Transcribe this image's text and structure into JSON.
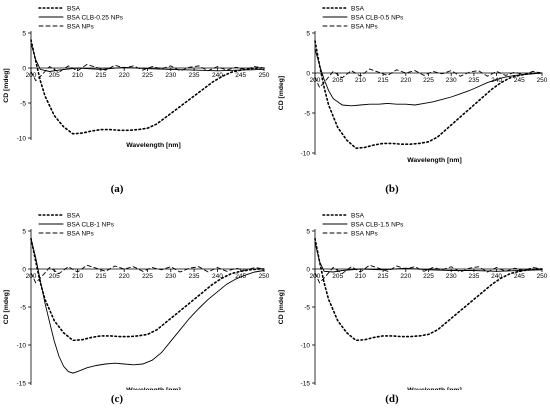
{
  "chart_data": [
    {
      "type": "line",
      "panel": "(a)",
      "xlabel": "Wavelength [nm]",
      "ylabel": "CD [mdeg]",
      "xlim": [
        200,
        250
      ],
      "ylim": [
        -10,
        5
      ],
      "xticks": [
        200,
        205,
        210,
        215,
        220,
        225,
        230,
        235,
        240,
        245,
        250
      ],
      "yticks": [
        5,
        0,
        -5,
        -10
      ],
      "legend_position": "top-left",
      "series": [
        {
          "name": "BSA",
          "style": "dotted",
          "x": [
            200,
            201,
            202,
            203,
            205,
            207,
            209,
            211,
            213,
            215,
            217,
            219,
            221,
            223,
            225,
            227,
            229,
            231,
            233,
            235,
            237,
            239,
            241,
            243,
            245,
            247,
            249,
            250
          ],
          "y": [
            4.0,
            1.0,
            -1.8,
            -4.0,
            -6.8,
            -8.4,
            -9.4,
            -9.3,
            -9.0,
            -8.8,
            -8.8,
            -8.9,
            -8.9,
            -8.8,
            -8.6,
            -8.0,
            -7.0,
            -6.0,
            -5.0,
            -4.0,
            -3.0,
            -2.0,
            -1.2,
            -0.6,
            -0.3,
            -0.1,
            0.0,
            0.0
          ]
        },
        {
          "name": "BSA CLB-0.25 NPs",
          "style": "solid",
          "x": [
            200,
            201,
            202,
            204,
            206,
            210,
            215,
            220,
            225,
            230,
            235,
            240,
            245,
            250
          ],
          "y": [
            3.5,
            1.2,
            -0.2,
            -0.5,
            -0.3,
            0.0,
            -0.2,
            0.1,
            -0.1,
            -0.2,
            -0.3,
            -0.4,
            -0.3,
            -0.2
          ]
        },
        {
          "name": "BSA NPs",
          "style": "dashed",
          "x": [
            200,
            201,
            202,
            203,
            204,
            206,
            208,
            210,
            212,
            214,
            216,
            218,
            220,
            222,
            224,
            226,
            228,
            230,
            232,
            234,
            236,
            238,
            240,
            242,
            244,
            246,
            248,
            250
          ],
          "y": [
            -0.5,
            -1.8,
            -1.2,
            -0.5,
            0.2,
            -0.6,
            0.3,
            -0.4,
            0.5,
            0.1,
            -0.3,
            0.4,
            0.0,
            0.3,
            -0.3,
            0.2,
            -0.1,
            0.3,
            -0.4,
            0.1,
            0.3,
            -0.4,
            0.2,
            -0.3,
            0.1,
            -0.2,
            0.2,
            0.0
          ]
        }
      ]
    },
    {
      "type": "line",
      "panel": "(b)",
      "xlabel": "Wavelength [nm]",
      "ylabel": "CD [mdeg]",
      "xlim": [
        200,
        250
      ],
      "ylim": [
        -10,
        5
      ],
      "xticks": [
        200,
        205,
        210,
        215,
        220,
        225,
        230,
        235,
        240,
        245,
        250
      ],
      "yticks": [
        5,
        0,
        -5,
        -10
      ],
      "legend_position": "top-left",
      "series": [
        {
          "name": "BSA",
          "style": "dotted",
          "x": [
            200,
            201,
            202,
            203,
            205,
            207,
            209,
            211,
            213,
            215,
            217,
            219,
            221,
            223,
            225,
            227,
            229,
            231,
            233,
            235,
            237,
            239,
            241,
            243,
            245,
            247,
            249,
            250
          ],
          "y": [
            4.0,
            1.0,
            -1.8,
            -4.0,
            -6.8,
            -8.4,
            -9.4,
            -9.3,
            -9.0,
            -8.8,
            -8.8,
            -8.9,
            -8.9,
            -8.8,
            -8.6,
            -8.0,
            -7.0,
            -6.0,
            -5.0,
            -4.0,
            -3.0,
            -2.0,
            -1.2,
            -0.6,
            -0.3,
            -0.1,
            0.0,
            0.0
          ]
        },
        {
          "name": "BSA CLB-0.5 NPs",
          "style": "solid",
          "x": [
            200,
            201,
            202,
            203,
            204,
            206,
            208,
            210,
            212,
            214,
            216,
            218,
            220,
            222,
            224,
            226,
            228,
            230,
            232,
            234,
            236,
            238,
            240,
            242,
            244,
            246,
            248,
            250
          ],
          "y": [
            3.0,
            1.0,
            -0.8,
            -2.2,
            -3.2,
            -4.0,
            -4.1,
            -4.0,
            -3.9,
            -3.9,
            -3.8,
            -3.9,
            -3.9,
            -4.0,
            -3.8,
            -3.6,
            -3.3,
            -3.0,
            -2.6,
            -2.2,
            -1.7,
            -1.2,
            -0.8,
            -0.5,
            -0.3,
            -0.2,
            -0.1,
            0.0
          ]
        },
        {
          "name": "BSA NPs",
          "style": "dashed",
          "x": [
            200,
            201,
            202,
            203,
            204,
            206,
            208,
            210,
            212,
            214,
            216,
            218,
            220,
            222,
            224,
            226,
            228,
            230,
            232,
            234,
            236,
            238,
            240,
            242,
            244,
            246,
            248,
            250
          ],
          "y": [
            -0.5,
            -1.8,
            -1.2,
            -0.5,
            0.2,
            -0.6,
            0.3,
            -0.4,
            0.5,
            0.1,
            -0.3,
            0.4,
            0.0,
            0.3,
            -0.3,
            0.2,
            -0.1,
            0.3,
            -0.4,
            0.1,
            0.3,
            -0.4,
            0.2,
            -0.3,
            0.1,
            -0.2,
            0.2,
            0.0
          ]
        }
      ]
    },
    {
      "type": "line",
      "panel": "(c)",
      "xlabel": "Wavelength [nm]",
      "ylabel": "CD [mdeg]",
      "xlim": [
        200,
        250
      ],
      "ylim": [
        -15,
        5
      ],
      "xticks": [
        200,
        205,
        210,
        215,
        220,
        225,
        230,
        235,
        240,
        245,
        250
      ],
      "yticks": [
        5,
        0,
        -5,
        -10,
        -15
      ],
      "legend_position": "top-left",
      "series": [
        {
          "name": "BSA",
          "style": "dotted",
          "x": [
            200,
            201,
            202,
            203,
            205,
            207,
            209,
            211,
            213,
            215,
            217,
            219,
            221,
            223,
            225,
            227,
            229,
            231,
            233,
            235,
            237,
            239,
            241,
            243,
            245,
            247,
            249,
            250
          ],
          "y": [
            4.0,
            1.0,
            -1.8,
            -4.0,
            -6.8,
            -8.4,
            -9.4,
            -9.3,
            -9.0,
            -8.8,
            -8.8,
            -8.9,
            -8.9,
            -8.8,
            -8.6,
            -8.0,
            -7.0,
            -6.0,
            -5.0,
            -4.0,
            -3.0,
            -2.0,
            -1.2,
            -0.6,
            -0.3,
            -0.1,
            0.0,
            0.0
          ]
        },
        {
          "name": "BSA CLB-1 NPs",
          "style": "solid",
          "x": [
            200,
            201,
            202,
            203,
            204,
            205,
            206,
            207,
            208,
            209,
            210,
            212,
            214,
            216,
            218,
            220,
            222,
            224,
            226,
            228,
            230,
            232,
            234,
            236,
            238,
            240,
            242,
            244,
            246,
            248,
            250
          ],
          "y": [
            4.0,
            1.5,
            -1.5,
            -4.5,
            -7.0,
            -9.5,
            -11.5,
            -12.8,
            -13.5,
            -13.7,
            -13.5,
            -13.0,
            -12.7,
            -12.5,
            -12.4,
            -12.5,
            -12.6,
            -12.5,
            -12.0,
            -11.0,
            -9.5,
            -8.0,
            -6.5,
            -5.2,
            -4.0,
            -3.0,
            -2.0,
            -1.3,
            -0.8,
            -0.4,
            -0.2
          ]
        },
        {
          "name": "BSA NPs",
          "style": "dashed",
          "x": [
            200,
            201,
            202,
            203,
            204,
            206,
            208,
            210,
            212,
            214,
            216,
            218,
            220,
            222,
            224,
            226,
            228,
            230,
            232,
            234,
            236,
            238,
            240,
            242,
            244,
            246,
            248,
            250
          ],
          "y": [
            -0.5,
            -1.8,
            -1.2,
            -0.5,
            0.2,
            -0.6,
            0.3,
            -0.4,
            0.5,
            0.1,
            -0.3,
            0.4,
            0.0,
            0.3,
            -0.3,
            0.2,
            -0.1,
            0.3,
            -0.4,
            0.1,
            0.3,
            -0.4,
            0.2,
            -0.3,
            0.1,
            -0.2,
            0.2,
            0.0
          ]
        }
      ]
    },
    {
      "type": "line",
      "panel": "(d)",
      "xlabel": "Wavelength [nm]",
      "ylabel": "CD [mdeg]",
      "xlim": [
        200,
        250
      ],
      "ylim": [
        -15,
        5
      ],
      "xticks": [
        200,
        205,
        210,
        215,
        220,
        225,
        230,
        235,
        240,
        245,
        250
      ],
      "yticks": [
        5,
        0,
        -5,
        -10,
        -15
      ],
      "legend_position": "top-left",
      "series": [
        {
          "name": "BSA",
          "style": "dotted",
          "x": [
            200,
            201,
            202,
            203,
            205,
            207,
            209,
            211,
            213,
            215,
            217,
            219,
            221,
            223,
            225,
            227,
            229,
            231,
            233,
            235,
            237,
            239,
            241,
            243,
            245,
            247,
            249,
            250
          ],
          "y": [
            4.0,
            1.0,
            -1.8,
            -4.0,
            -6.8,
            -8.4,
            -9.4,
            -9.3,
            -9.0,
            -8.8,
            -8.8,
            -8.9,
            -8.9,
            -8.8,
            -8.6,
            -8.0,
            -7.0,
            -6.0,
            -5.0,
            -4.0,
            -3.0,
            -2.0,
            -1.2,
            -0.6,
            -0.3,
            -0.1,
            0.0,
            0.0
          ]
        },
        {
          "name": "BSA CLB-1.5 NPs",
          "style": "solid",
          "x": [
            200,
            201,
            202,
            204,
            206,
            210,
            215,
            220,
            225,
            230,
            235,
            240,
            245,
            250
          ],
          "y": [
            3.5,
            1.0,
            -0.3,
            -0.4,
            -0.2,
            0.0,
            -0.1,
            0.1,
            -0.1,
            -0.2,
            -0.2,
            -0.3,
            -0.2,
            -0.1
          ]
        },
        {
          "name": "BSA NPs",
          "style": "dashed",
          "x": [
            200,
            201,
            202,
            203,
            204,
            206,
            208,
            210,
            212,
            214,
            216,
            218,
            220,
            222,
            224,
            226,
            228,
            230,
            232,
            234,
            236,
            238,
            240,
            242,
            244,
            246,
            248,
            250
          ],
          "y": [
            -0.5,
            -1.8,
            -1.2,
            -0.5,
            0.2,
            -0.6,
            0.3,
            -0.4,
            0.5,
            0.1,
            -0.3,
            0.4,
            0.0,
            0.3,
            -0.3,
            0.2,
            -0.1,
            0.3,
            -0.4,
            0.1,
            0.3,
            -0.4,
            0.2,
            -0.3,
            0.1,
            -0.2,
            0.2,
            0.0
          ]
        }
      ]
    }
  ]
}
